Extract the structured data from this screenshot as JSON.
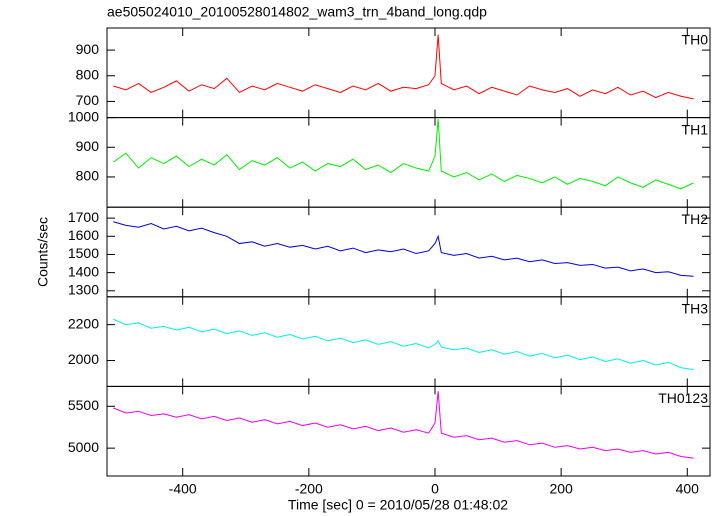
{
  "chart_data": {
    "type": "line",
    "title": "ae505024010_20100528014802_wam3_trn_4band_long.qdp",
    "xlabel": "Time [sec] 0 = 2010/05/28 01:48:02",
    "ylabel": "Counts/sec",
    "xlim": [
      -520,
      436
    ],
    "xticks": [
      -400,
      -200,
      0,
      200,
      400
    ],
    "x": [
      -510,
      -490,
      -470,
      -450,
      -430,
      -410,
      -390,
      -370,
      -350,
      -330,
      -310,
      -290,
      -270,
      -250,
      -230,
      -210,
      -190,
      -170,
      -150,
      -130,
      -110,
      -90,
      -70,
      -50,
      -30,
      -10,
      0,
      5,
      10,
      30,
      50,
      70,
      90,
      110,
      130,
      150,
      170,
      190,
      210,
      230,
      250,
      270,
      290,
      310,
      330,
      350,
      370,
      390,
      410
    ],
    "series": [
      {
        "name": "TH0",
        "color": "#ff0000",
        "ylim": [
          637,
          986
        ],
        "yticks": [
          700,
          800,
          900
        ],
        "values": [
          760,
          745,
          770,
          735,
          755,
          780,
          740,
          765,
          750,
          790,
          735,
          760,
          745,
          770,
          755,
          740,
          765,
          750,
          735,
          760,
          745,
          770,
          740,
          755,
          750,
          765,
          800,
          960,
          770,
          745,
          760,
          730,
          755,
          740,
          725,
          760,
          745,
          735,
          750,
          720,
          745,
          730,
          755,
          725,
          740,
          715,
          735,
          720,
          710
        ]
      },
      {
        "name": "TH1",
        "color": "#00ee00",
        "ylim": [
          698,
          1000
        ],
        "yticks": [
          800,
          900,
          1000
        ],
        "values": [
          850,
          880,
          830,
          865,
          845,
          870,
          835,
          860,
          840,
          875,
          825,
          855,
          840,
          865,
          830,
          850,
          820,
          845,
          835,
          860,
          825,
          840,
          815,
          845,
          830,
          820,
          870,
          995,
          820,
          800,
          815,
          790,
          810,
          785,
          805,
          795,
          780,
          800,
          775,
          795,
          785,
          770,
          800,
          780,
          765,
          790,
          775,
          760,
          780
        ]
      },
      {
        "name": "TH2",
        "color": "#0000dd",
        "ylim": [
          1267,
          1760
        ],
        "yticks": [
          1300,
          1400,
          1500,
          1600,
          1700
        ],
        "values": [
          1680,
          1660,
          1650,
          1670,
          1640,
          1655,
          1630,
          1645,
          1620,
          1600,
          1560,
          1570,
          1545,
          1560,
          1540,
          1550,
          1530,
          1545,
          1520,
          1535,
          1510,
          1525,
          1515,
          1530,
          1505,
          1520,
          1560,
          1600,
          1510,
          1495,
          1505,
          1480,
          1490,
          1470,
          1480,
          1460,
          1470,
          1450,
          1455,
          1440,
          1445,
          1425,
          1430,
          1410,
          1420,
          1400,
          1405,
          1385,
          1380
        ]
      },
      {
        "name": "TH3",
        "color": "#00eeee",
        "ylim": [
          1856,
          2355
        ],
        "yticks": [
          2000,
          2200
        ],
        "values": [
          2230,
          2200,
          2210,
          2180,
          2190,
          2170,
          2185,
          2160,
          2175,
          2150,
          2165,
          2140,
          2155,
          2130,
          2145,
          2120,
          2135,
          2110,
          2125,
          2100,
          2115,
          2090,
          2105,
          2080,
          2095,
          2070,
          2090,
          2110,
          2075,
          2060,
          2070,
          2045,
          2060,
          2035,
          2050,
          2025,
          2040,
          2015,
          2030,
          2005,
          2020,
          1995,
          2010,
          1985,
          2000,
          1975,
          1990,
          1960,
          1950
        ]
      },
      {
        "name": "TH0123",
        "color": "#ee00ee",
        "ylim": [
          4667,
          5738
        ],
        "yticks": [
          5000,
          5500
        ],
        "values": [
          5480,
          5420,
          5440,
          5390,
          5410,
          5370,
          5400,
          5350,
          5380,
          5330,
          5360,
          5310,
          5340,
          5290,
          5320,
          5270,
          5300,
          5250,
          5280,
          5230,
          5260,
          5210,
          5240,
          5190,
          5220,
          5180,
          5300,
          5680,
          5180,
          5130,
          5150,
          5100,
          5120,
          5070,
          5090,
          5040,
          5060,
          5010,
          5030,
          4990,
          5010,
          4970,
          4990,
          4950,
          4970,
          4930,
          4950,
          4900,
          4880
        ]
      }
    ]
  }
}
